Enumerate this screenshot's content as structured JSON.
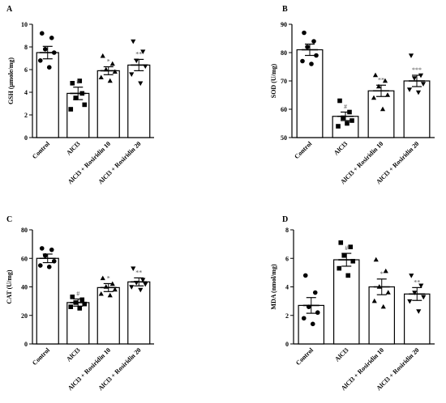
{
  "chart_data": [
    {
      "panel": "A",
      "type": "bar",
      "ylabel": "GSH (μmole/mg)",
      "ylim": [
        0,
        10
      ],
      "yticks": [
        0,
        2,
        4,
        6,
        8,
        10
      ],
      "categories": [
        "Control",
        "AlCl3",
        "AlCl3 + Rosiridin 10",
        "AlCl3 + Rosiridin 20"
      ],
      "values": [
        7.5,
        3.9,
        5.9,
        6.4
      ],
      "errors": [
        0.55,
        0.55,
        0.35,
        0.5
      ],
      "significance": [
        "",
        "#",
        "*",
        "**"
      ],
      "markers": [
        "circle",
        "square",
        "triangle",
        "triangle-down"
      ],
      "points": [
        [
          9.2,
          8.8,
          7.8,
          7.5,
          6.8,
          6.2
        ],
        [
          4.8,
          3.9,
          3.5,
          2.9,
          2.5,
          5.0
        ],
        [
          7.2,
          6.5,
          6.0,
          5.8,
          5.3,
          5.0
        ],
        [
          8.5,
          7.6,
          6.8,
          6.3,
          5.6,
          4.8
        ]
      ]
    },
    {
      "panel": "B",
      "type": "bar",
      "ylabel": "SOD (U/mg)",
      "ylim": [
        50,
        90
      ],
      "yticks": [
        50,
        60,
        70,
        80,
        90
      ],
      "categories": [
        "Control",
        "AlCl3",
        "AlCl3 + Rosiridin 10",
        "AlCl3 + Rosiridin 20"
      ],
      "values": [
        81,
        57.5,
        66.5,
        70
      ],
      "errors": [
        2.0,
        1.5,
        2.0,
        2.0
      ],
      "significance": [
        "",
        "#",
        "**",
        "***"
      ],
      "markers": [
        "circle",
        "square",
        "triangle",
        "triangle-down"
      ],
      "points": [
        [
          87,
          84,
          82,
          79,
          77,
          76
        ],
        [
          63,
          59,
          57,
          56,
          54,
          55
        ],
        [
          72,
          70,
          68,
          65,
          64,
          60
        ],
        [
          79,
          72,
          71,
          69,
          67,
          66
        ]
      ]
    },
    {
      "panel": "C",
      "type": "bar",
      "ylabel": "CAT (U/mg)",
      "ylim": [
        0,
        80
      ],
      "yticks": [
        0,
        20,
        40,
        60,
        80
      ],
      "categories": [
        "Control",
        "AlCl3",
        "AlCl3 + Rosiridin 10",
        "AlCl3 + Rosiridin 20"
      ],
      "values": [
        60,
        29,
        39.5,
        43.5
      ],
      "errors": [
        3.0,
        2.5,
        2.8,
        2.8
      ],
      "significance": [
        "",
        "#",
        "*",
        "**"
      ],
      "markers": [
        "circle",
        "square",
        "triangle",
        "triangle-down"
      ],
      "points": [
        [
          67,
          66,
          62,
          58,
          55,
          54
        ],
        [
          33,
          31,
          29,
          28,
          26,
          25
        ],
        [
          46,
          42,
          40,
          38,
          35,
          34
        ],
        [
          53,
          45,
          43,
          42,
          40,
          38
        ]
      ]
    },
    {
      "panel": "D",
      "type": "bar",
      "ylabel": "MDA (nmol/mg)",
      "ylim": [
        0,
        8
      ],
      "yticks": [
        0,
        2,
        4,
        6,
        8
      ],
      "categories": [
        "Control",
        "AlCl3",
        "AlCl3 + Rosiridin 10",
        "AlCl3 + Rosiridin 20"
      ],
      "values": [
        2.7,
        5.9,
        4.0,
        3.5
      ],
      "errors": [
        0.55,
        0.45,
        0.55,
        0.45
      ],
      "significance": [
        "",
        "#",
        "*",
        "**"
      ],
      "markers": [
        "circle",
        "square",
        "triangle",
        "triangle-down"
      ],
      "points": [
        [
          4.8,
          3.6,
          2.6,
          2.2,
          1.8,
          1.4
        ],
        [
          7.1,
          6.8,
          6.2,
          5.8,
          5.3,
          4.8
        ],
        [
          5.9,
          5.1,
          4.0,
          3.6,
          3.0,
          2.6
        ],
        [
          4.8,
          4.1,
          3.6,
          3.3,
          3.0,
          2.3
        ]
      ]
    }
  ]
}
